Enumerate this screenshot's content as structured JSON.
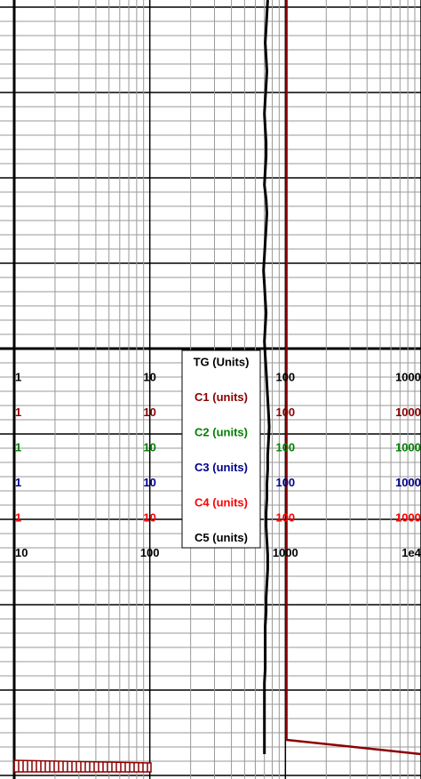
{
  "chart_data": {
    "type": "log-track",
    "grid": true,
    "scales": [
      {
        "name": "TG (Units)",
        "color": "#000000",
        "xlim": [
          1,
          1000
        ],
        "xticks": [
          1,
          10,
          100,
          1000
        ],
        "values": [
          74,
          73,
          72,
          71,
          72,
          73,
          72,
          71,
          70,
          71,
          72,
          72,
          71,
          70,
          72,
          73,
          72,
          71,
          70,
          69,
          70,
          71,
          72,
          71,
          70,
          71,
          72,
          73,
          74,
          75,
          76,
          75,
          74,
          74,
          73,
          73,
          72,
          72,
          73,
          74,
          74,
          73,
          72,
          72,
          71,
          71,
          71,
          71,
          70,
          70,
          70,
          70,
          70,
          70
        ]
      },
      {
        "name": "C1 (units)",
        "color": "#8b0000",
        "xlim": [
          1,
          1000
        ],
        "xticks": [
          1,
          10,
          100,
          1000
        ],
        "values": [
          102,
          102,
          102,
          102,
          102,
          102,
          102,
          102,
          102,
          102,
          102,
          102,
          102,
          102,
          102,
          102,
          102,
          102,
          102,
          102,
          102,
          102,
          102,
          102,
          102,
          102,
          102,
          102,
          102,
          102,
          102,
          102,
          102,
          102,
          102,
          102,
          102,
          102,
          102,
          102,
          102,
          102,
          102,
          102,
          102,
          102,
          102,
          102,
          102,
          102,
          102,
          102,
          102,
          1000
        ]
      },
      {
        "name": "C2 (units)",
        "color": "#008000",
        "xlim": [
          1,
          1000
        ],
        "xticks": [
          1,
          10,
          100,
          1000
        ]
      },
      {
        "name": "C3 (units)",
        "color": "#00008b",
        "xlim": [
          1,
          1000
        ],
        "xticks": [
          1,
          10,
          100,
          1000
        ]
      },
      {
        "name": "C4 (units)",
        "color": "#ff0000",
        "xlim": [
          1,
          1000
        ],
        "xticks": [
          1,
          10,
          100,
          1000
        ]
      },
      {
        "name": "C5 (units)",
        "color": "#000000",
        "xlim": [
          10,
          10000
        ],
        "xticks": [
          10,
          100,
          1000,
          {
            "value": 10000,
            "label": "1e4"
          }
        ]
      }
    ]
  }
}
